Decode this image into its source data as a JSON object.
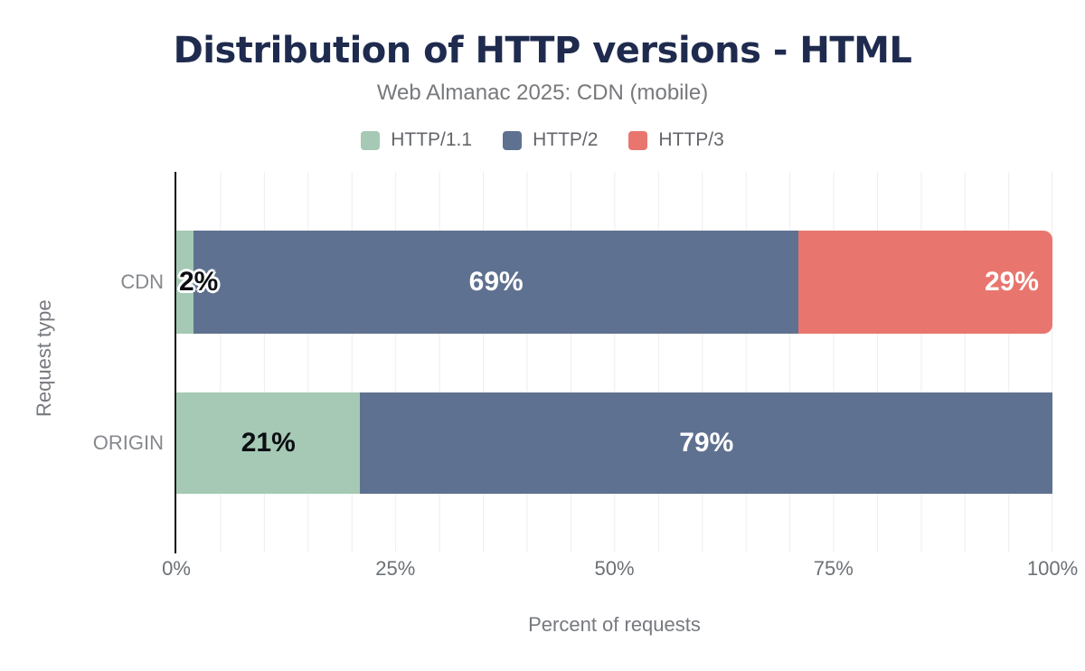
{
  "chart_data": {
    "type": "bar",
    "orientation": "horizontal",
    "stacked": true,
    "title": "Distribution of HTTP versions - HTML",
    "subtitle": "Web Almanac 2025: CDN (mobile)",
    "xlabel": "Percent of requests",
    "ylabel": "Request type",
    "xlim": [
      0,
      100
    ],
    "xticks": [
      "0%",
      "25%",
      "50%",
      "75%",
      "100%"
    ],
    "grid": "vertical, every 5%",
    "legend_position": "top center",
    "categories": [
      "CDN",
      "ORIGIN"
    ],
    "series": [
      {
        "name": "HTTP/1.1",
        "color": "#a5c9b4",
        "label_color": "#0b0e12",
        "points": [
          {
            "category": "CDN",
            "value": 2,
            "label": "2%",
            "label_align": "start",
            "label_outline": true
          },
          {
            "category": "ORIGIN",
            "value": 21,
            "label": "21%",
            "label_align": "center"
          }
        ]
      },
      {
        "name": "HTTP/2",
        "color": "#5f7190",
        "label_color": "#ffffff",
        "points": [
          {
            "category": "CDN",
            "value": 69,
            "label": "69%",
            "label_align": "center"
          },
          {
            "category": "ORIGIN",
            "value": 79,
            "label": "79%",
            "label_align": "center"
          }
        ]
      },
      {
        "name": "HTTP/3",
        "color": "#e8766e",
        "label_color": "#ffffff",
        "points": [
          {
            "category": "CDN",
            "value": 29,
            "label": "29%",
            "label_align": "end",
            "rounded_right": true
          }
        ]
      }
    ]
  }
}
